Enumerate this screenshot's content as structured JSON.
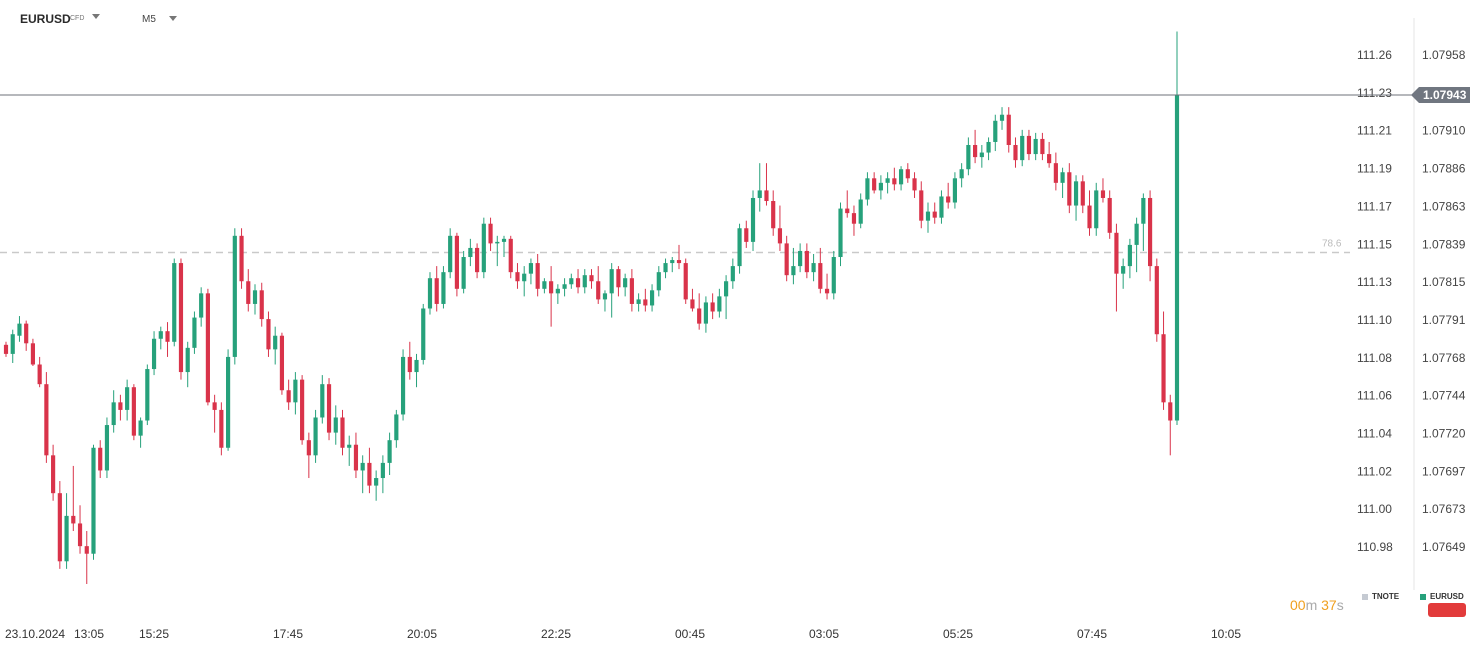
{
  "header": {
    "symbol": "EURUSD",
    "symbol_sub": "CFD",
    "timeframe": "M5"
  },
  "timer": {
    "minutes": "00",
    "m_label": "m",
    "seconds": "37",
    "s_label": "s"
  },
  "legend": [
    {
      "label": "TNOTE",
      "color": "#c5cad2"
    },
    {
      "label": "EURUSD",
      "color": "#26a17b"
    }
  ],
  "colors": {
    "up": "#26a17b",
    "down": "#d9334a",
    "current_tag": "#707680",
    "level_line": "#c9c9c9"
  },
  "chart_data": {
    "type": "candlestick",
    "symbol": "EURUSD",
    "interval": "M5",
    "x_tick_labels": [
      "23.10.2024",
      "13:05",
      "15:25",
      "17:45",
      "20:05",
      "22:25",
      "00:45",
      "03:05",
      "05:25",
      "07:45",
      "10:05"
    ],
    "y_axis_left_ticks": [
      "111.26",
      "111.23",
      "111.21",
      "111.19",
      "111.17",
      "111.15",
      "111.13",
      "111.10",
      "111.08",
      "111.06",
      "111.04",
      "111.02",
      "111.00",
      "110.98"
    ],
    "y_axis_right_ticks": [
      "1.07958",
      "1.07934",
      "1.07910",
      "1.07886",
      "1.07863",
      "1.07839",
      "1.07815",
      "1.07791",
      "1.07768",
      "1.07744",
      "1.07720",
      "1.07697",
      "1.07673",
      "1.07649"
    ],
    "ylim_left": [
      110.9669,
      111.2883
    ],
    "ylim_right": [
      1.0762,
      1.07982
    ],
    "current_price": "1.07943",
    "level_label": "78.6",
    "level_value": 1.07839,
    "candles": [
      [
        1.07778,
        1.0778,
        1.0777,
        1.07772
      ],
      [
        1.07772,
        1.07788,
        1.07766,
        1.07785
      ],
      [
        1.07784,
        1.07797,
        1.0778,
        1.07792
      ],
      [
        1.07792,
        1.07794,
        1.07774,
        1.07779
      ],
      [
        1.07779,
        1.07782,
        1.07764,
        1.07765
      ],
      [
        1.07765,
        1.0777,
        1.0775,
        1.07752
      ],
      [
        1.07752,
        1.0776,
        1.077,
        1.07705
      ],
      [
        1.07705,
        1.07712,
        1.07675,
        1.0768
      ],
      [
        1.0768,
        1.07688,
        1.0763,
        1.07635
      ],
      [
        1.07635,
        1.0768,
        1.0763,
        1.07665
      ],
      [
        1.07665,
        1.07698,
        1.07655,
        1.0766
      ],
      [
        1.0766,
        1.07672,
        1.0764,
        1.07645
      ],
      [
        1.07645,
        1.07655,
        1.0762,
        1.0764
      ],
      [
        1.0764,
        1.07712,
        1.07636,
        1.0771
      ],
      [
        1.0771,
        1.07715,
        1.0769,
        1.07695
      ],
      [
        1.07695,
        1.0773,
        1.0769,
        1.07725
      ],
      [
        1.07725,
        1.07748,
        1.0772,
        1.0774
      ],
      [
        1.0774,
        1.07745,
        1.07728,
        1.07735
      ],
      [
        1.07735,
        1.07755,
        1.07728,
        1.0775
      ],
      [
        1.0775,
        1.07752,
        1.07715,
        1.07718
      ],
      [
        1.07718,
        1.0773,
        1.0771,
        1.07728
      ],
      [
        1.07728,
        1.07765,
        1.07725,
        1.07762
      ],
      [
        1.07762,
        1.07787,
        1.07758,
        1.07782
      ],
      [
        1.07782,
        1.0779,
        1.07775,
        1.07787
      ],
      [
        1.07787,
        1.07793,
        1.0777,
        1.0778
      ],
      [
        1.0778,
        1.07835,
        1.07777,
        1.07832
      ],
      [
        1.07832,
        1.07835,
        1.07755,
        1.0776
      ],
      [
        1.0776,
        1.0778,
        1.0775,
        1.07776
      ],
      [
        1.07776,
        1.078,
        1.07772,
        1.07796
      ],
      [
        1.07796,
        1.07816,
        1.0779,
        1.07812
      ],
      [
        1.07812,
        1.07815,
        1.07738,
        1.0774
      ],
      [
        1.0774,
        1.07745,
        1.0772,
        1.07735
      ],
      [
        1.07735,
        1.0774,
        1.07705,
        1.0771
      ],
      [
        1.0771,
        1.07775,
        1.07708,
        1.0777
      ],
      [
        1.0777,
        1.07855,
        1.07765,
        1.0785
      ],
      [
        1.0785,
        1.07855,
        1.07815,
        1.0782
      ],
      [
        1.0782,
        1.07828,
        1.078,
        1.07805
      ],
      [
        1.07805,
        1.07818,
        1.07798,
        1.07814
      ],
      [
        1.07814,
        1.07819,
        1.0779,
        1.07795
      ],
      [
        1.07795,
        1.078,
        1.0777,
        1.07775
      ],
      [
        1.07775,
        1.0779,
        1.07765,
        1.07784
      ],
      [
        1.07784,
        1.07786,
        1.07745,
        1.07748
      ],
      [
        1.07748,
        1.07755,
        1.07735,
        1.0774
      ],
      [
        1.0774,
        1.0776,
        1.07732,
        1.07755
      ],
      [
        1.07755,
        1.07758,
        1.07712,
        1.07715
      ],
      [
        1.07715,
        1.0772,
        1.0769,
        1.07705
      ],
      [
        1.07705,
        1.07735,
        1.077,
        1.0773
      ],
      [
        1.0773,
        1.07758,
        1.07726,
        1.07752
      ],
      [
        1.07752,
        1.07756,
        1.07715,
        1.0772
      ],
      [
        1.0772,
        1.07738,
        1.07712,
        1.0773
      ],
      [
        1.0773,
        1.07735,
        1.07705,
        1.0771
      ],
      [
        1.0771,
        1.07718,
        1.07698,
        1.07712
      ],
      [
        1.07712,
        1.0772,
        1.0769,
        1.07695
      ],
      [
        1.07695,
        1.07705,
        1.0768,
        1.077
      ],
      [
        1.077,
        1.0771,
        1.0768,
        1.07685
      ],
      [
        1.07685,
        1.07695,
        1.07675,
        1.0769
      ],
      [
        1.0769,
        1.07705,
        1.0768,
        1.077
      ],
      [
        1.077,
        1.0772,
        1.07692,
        1.07715
      ],
      [
        1.07715,
        1.07735,
        1.0771,
        1.07732
      ],
      [
        1.07732,
        1.07775,
        1.07728,
        1.0777
      ],
      [
        1.0777,
        1.0778,
        1.07755,
        1.0776
      ],
      [
        1.0776,
        1.07772,
        1.0775,
        1.07768
      ],
      [
        1.07768,
        1.07805,
        1.07765,
        1.07802
      ],
      [
        1.07802,
        1.07826,
        1.07798,
        1.07822
      ],
      [
        1.07822,
        1.0783,
        1.078,
        1.07805
      ],
      [
        1.07805,
        1.0783,
        1.07802,
        1.07826
      ],
      [
        1.07826,
        1.07855,
        1.07822,
        1.0785
      ],
      [
        1.0785,
        1.07852,
        1.0781,
        1.07815
      ],
      [
        1.07815,
        1.0784,
        1.07812,
        1.07836
      ],
      [
        1.07836,
        1.07848,
        1.0783,
        1.07842
      ],
      [
        1.07842,
        1.07845,
        1.07822,
        1.07826
      ],
      [
        1.07826,
        1.07862,
        1.07822,
        1.07858
      ],
      [
        1.07858,
        1.07862,
        1.0784,
        1.07845
      ],
      [
        1.07845,
        1.0785,
        1.0783,
        1.07846
      ],
      [
        1.07846,
        1.0785,
        1.07836,
        1.07848
      ],
      [
        1.07848,
        1.0785,
        1.07822,
        1.07826
      ],
      [
        1.07826,
        1.07832,
        1.07815,
        1.0782
      ],
      [
        1.0782,
        1.0783,
        1.0781,
        1.07825
      ],
      [
        1.07825,
        1.07835,
        1.07818,
        1.07832
      ],
      [
        1.07832,
        1.07838,
        1.0781,
        1.07815
      ],
      [
        1.07815,
        1.07822,
        1.07812,
        1.0782
      ],
      [
        1.0782,
        1.0783,
        1.0779,
        1.07812
      ],
      [
        1.07812,
        1.07818,
        1.07805,
        1.07815
      ],
      [
        1.07815,
        1.07822,
        1.0781,
        1.07818
      ],
      [
        1.07818,
        1.07825,
        1.07815,
        1.07822
      ],
      [
        1.07822,
        1.07828,
        1.07812,
        1.07816
      ],
      [
        1.07816,
        1.07828,
        1.07812,
        1.07824
      ],
      [
        1.07824,
        1.07828,
        1.07815,
        1.0782
      ],
      [
        1.0782,
        1.0783,
        1.07805,
        1.07808
      ],
      [
        1.07808,
        1.07814,
        1.078,
        1.07812
      ],
      [
        1.07812,
        1.07832,
        1.07796,
        1.07828
      ],
      [
        1.07828,
        1.0783,
        1.0781,
        1.07816
      ],
      [
        1.07816,
        1.07825,
        1.0781,
        1.07822
      ],
      [
        1.07822,
        1.07828,
        1.078,
        1.07805
      ],
      [
        1.07805,
        1.07812,
        1.078,
        1.07808
      ],
      [
        1.07808,
        1.07815,
        1.078,
        1.07804
      ],
      [
        1.07804,
        1.07818,
        1.078,
        1.07814
      ],
      [
        1.07814,
        1.0783,
        1.0781,
        1.07826
      ],
      [
        1.07826,
        1.07835,
        1.07822,
        1.07832
      ],
      [
        1.07832,
        1.07836,
        1.07826,
        1.07834
      ],
      [
        1.07834,
        1.07844,
        1.07828,
        1.07832
      ],
      [
        1.07832,
        1.07835,
        1.07805,
        1.07808
      ],
      [
        1.07808,
        1.07815,
        1.078,
        1.07802
      ],
      [
        1.07802,
        1.07812,
        1.07788,
        1.07792
      ],
      [
        1.07792,
        1.0781,
        1.07786,
        1.07806
      ],
      [
        1.07806,
        1.07812,
        1.07795,
        1.078
      ],
      [
        1.078,
        1.07815,
        1.07796,
        1.0781
      ],
      [
        1.0781,
        1.07824,
        1.07795,
        1.0782
      ],
      [
        1.0782,
        1.07835,
        1.07815,
        1.0783
      ],
      [
        1.0783,
        1.07858,
        1.07825,
        1.07855
      ],
      [
        1.07855,
        1.0786,
        1.07842,
        1.07846
      ],
      [
        1.07846,
        1.0788,
        1.0784,
        1.07875
      ],
      [
        1.07875,
        1.07898,
        1.07866,
        1.0788
      ],
      [
        1.0788,
        1.07898,
        1.0787,
        1.07873
      ],
      [
        1.07873,
        1.0788,
        1.0785,
        1.07855
      ],
      [
        1.07855,
        1.0787,
        1.0784,
        1.07845
      ],
      [
        1.07845,
        1.0785,
        1.0782,
        1.07824
      ],
      [
        1.07824,
        1.07842,
        1.07818,
        1.0783
      ],
      [
        1.0783,
        1.07845,
        1.07826,
        1.0784
      ],
      [
        1.0784,
        1.07845,
        1.07822,
        1.07826
      ],
      [
        1.07826,
        1.07838,
        1.0782,
        1.07832
      ],
      [
        1.07832,
        1.07842,
        1.07812,
        1.07815
      ],
      [
        1.07815,
        1.07825,
        1.07808,
        1.07812
      ],
      [
        1.07812,
        1.0784,
        1.07808,
        1.07836
      ],
      [
        1.07836,
        1.07872,
        1.0783,
        1.07868
      ],
      [
        1.07868,
        1.0788,
        1.07862,
        1.07865
      ],
      [
        1.07865,
        1.0787,
        1.0785,
        1.07858
      ],
      [
        1.07858,
        1.07878,
        1.07855,
        1.07874
      ],
      [
        1.07874,
        1.07892,
        1.0787,
        1.07888
      ],
      [
        1.07888,
        1.07892,
        1.07878,
        1.0788
      ],
      [
        1.0788,
        1.0789,
        1.07874,
        1.07885
      ],
      [
        1.07885,
        1.07892,
        1.07878,
        1.07888
      ],
      [
        1.07888,
        1.07895,
        1.0788,
        1.07884
      ],
      [
        1.07884,
        1.07896,
        1.0788,
        1.07894
      ],
      [
        1.07894,
        1.07898,
        1.07885,
        1.07888
      ],
      [
        1.07888,
        1.07892,
        1.07875,
        1.0788
      ],
      [
        1.0788,
        1.07886,
        1.07855,
        1.0786
      ],
      [
        1.0786,
        1.07872,
        1.07852,
        1.07866
      ],
      [
        1.07866,
        1.07872,
        1.07858,
        1.07862
      ],
      [
        1.07862,
        1.0788,
        1.07858,
        1.07876
      ],
      [
        1.07876,
        1.07885,
        1.07868,
        1.07872
      ],
      [
        1.07872,
        1.07892,
        1.07868,
        1.07888
      ],
      [
        1.07888,
        1.07898,
        1.07882,
        1.07894
      ],
      [
        1.07894,
        1.07915,
        1.0789,
        1.0791
      ],
      [
        1.0791,
        1.0792,
        1.07898,
        1.07902
      ],
      [
        1.07902,
        1.0791,
        1.07895,
        1.07905
      ],
      [
        1.07905,
        1.07915,
        1.079,
        1.07912
      ],
      [
        1.07912,
        1.0793,
        1.07906,
        1.07926
      ],
      [
        1.07926,
        1.07935,
        1.0792,
        1.0793
      ],
      [
        1.0793,
        1.07935,
        1.07905,
        1.0791
      ],
      [
        1.0791,
        1.07915,
        1.07895,
        1.079
      ],
      [
        1.079,
        1.0792,
        1.07896,
        1.07916
      ],
      [
        1.07916,
        1.0792,
        1.079,
        1.07904
      ],
      [
        1.07904,
        1.07918,
        1.079,
        1.07914
      ],
      [
        1.07914,
        1.07918,
        1.079,
        1.07904
      ],
      [
        1.07904,
        1.07912,
        1.07895,
        1.07898
      ],
      [
        1.07898,
        1.07905,
        1.0788,
        1.07885
      ],
      [
        1.07885,
        1.07895,
        1.07875,
        1.07892
      ],
      [
        1.07892,
        1.07898,
        1.07865,
        1.0787
      ],
      [
        1.0787,
        1.0789,
        1.0786,
        1.07886
      ],
      [
        1.07886,
        1.0789,
        1.07865,
        1.0787
      ],
      [
        1.0787,
        1.0788,
        1.0785,
        1.07855
      ],
      [
        1.07855,
        1.07885,
        1.0785,
        1.0788
      ],
      [
        1.0788,
        1.07888,
        1.07872,
        1.07875
      ],
      [
        1.07875,
        1.0788,
        1.07848,
        1.07852
      ],
      [
        1.07852,
        1.07858,
        1.078,
        1.07825
      ],
      [
        1.07825,
        1.07835,
        1.07815,
        1.0783
      ],
      [
        1.0783,
        1.07848,
        1.07822,
        1.07844
      ],
      [
        1.07844,
        1.07862,
        1.07826,
        1.07858
      ],
      [
        1.07858,
        1.07878,
        1.0784,
        1.07875
      ],
      [
        1.07875,
        1.0788,
        1.0782,
        1.0783
      ],
      [
        1.0783,
        1.07835,
        1.0778,
        1.07785
      ],
      [
        1.07785,
        1.078,
        1.07735,
        1.0774
      ],
      [
        1.0774,
        1.07745,
        1.07705,
        1.07728
      ],
      [
        1.07728,
        1.07985,
        1.07725,
        1.07943
      ]
    ]
  }
}
